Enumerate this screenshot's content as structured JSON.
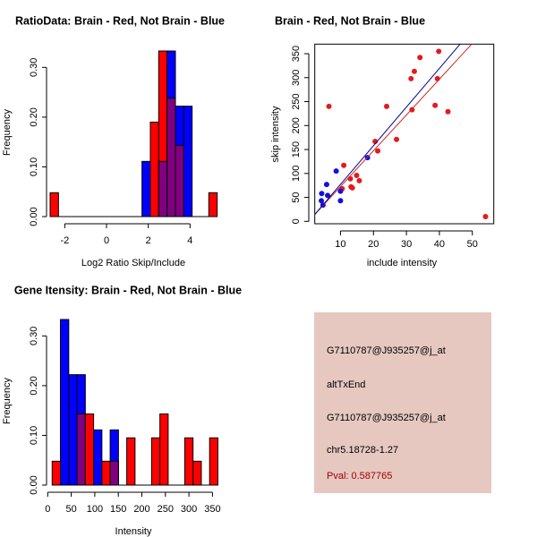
{
  "colors": {
    "red": "#ff0000",
    "blue": "#0000ff",
    "overlap": "#800080",
    "panel_bg": "#e6c8c0",
    "pval_text": "#a00000",
    "point_red": "#e31a1c",
    "point_blue": "#1010e0",
    "line_blue": "#00008b",
    "line_red": "#cd2626"
  },
  "chart_data": [
    {
      "type": "bar",
      "subtype": "overlaid-histogram",
      "title": "RatioData: Brain - Red, Not Brain - Blue",
      "xlabel": "Log2 Ratio Skip/Include",
      "ylabel": "Frequency",
      "bin_start": -2.7,
      "bin_width": 0.4,
      "xlim": [
        -2.8,
        5.5
      ],
      "ylim": [
        0,
        0.3
      ],
      "x_ticks": [
        -2,
        0,
        2,
        4
      ],
      "x_tick_labels": [
        "-2",
        "0",
        "2",
        "4"
      ],
      "y_ticks": [
        0,
        0.1,
        0.2,
        0.3
      ],
      "y_tick_labels": [
        "0.00",
        "0.10",
        "0.20",
        "0.30"
      ],
      "series": [
        {
          "name": "Not Brain",
          "color": "blue",
          "values": [
            0,
            0,
            0,
            0,
            0,
            0,
            0,
            0,
            0,
            0,
            0,
            0.111,
            0,
            0.111,
            0.333,
            0.222,
            0.222,
            0,
            0,
            0
          ]
        },
        {
          "name": "Brain",
          "color": "red",
          "values": [
            0.048,
            0,
            0,
            0,
            0,
            0,
            0,
            0,
            0,
            0,
            0,
            0,
            0.19,
            0.333,
            0.238,
            0.143,
            0,
            0,
            0,
            0.048
          ]
        }
      ]
    },
    {
      "type": "scatter",
      "title": "Brain - Red, Not Brain - Blue",
      "xlabel": "include intensity",
      "ylabel": "skip intensity",
      "xlim": [
        2.2,
        56.5
      ],
      "ylim": [
        -5,
        370
      ],
      "x_ticks": [
        10,
        20,
        30,
        40,
        50
      ],
      "x_tick_labels": [
        "10",
        "20",
        "30",
        "40",
        "50"
      ],
      "y_ticks": [
        0,
        50,
        100,
        150,
        200,
        250,
        300,
        350
      ],
      "y_tick_labels": [
        "0",
        "50",
        "100",
        "150",
        "200",
        "250",
        "300",
        "350"
      ],
      "series": [
        {
          "name": "Brain",
          "color": "red",
          "points": [
            [
              6.5,
              240
            ],
            [
              10.5,
              68
            ],
            [
              11,
              117
            ],
            [
              13,
              89
            ],
            [
              13.2,
              72
            ],
            [
              13.6,
              70
            ],
            [
              14.9,
              96
            ],
            [
              15.7,
              85
            ],
            [
              20.5,
              167
            ],
            [
              21.3,
              147
            ],
            [
              24,
              240
            ],
            [
              27,
              171
            ],
            [
              31.4,
              298
            ],
            [
              31.7,
              233
            ],
            [
              32.4,
              313
            ],
            [
              34.1,
              342
            ],
            [
              38.7,
              242
            ],
            [
              39.4,
              298
            ],
            [
              39.8,
              355
            ],
            [
              42.6,
              229
            ],
            [
              54,
              10
            ]
          ],
          "fit": {
            "slope": 7.47,
            "intercept": -2
          }
        },
        {
          "name": "Not Brain",
          "color": "blue",
          "points": [
            [
              4.2,
              43
            ],
            [
              4.3,
              58
            ],
            [
              4.7,
              34
            ],
            [
              5.8,
              77
            ],
            [
              6.1,
              54
            ],
            [
              8.7,
              105
            ],
            [
              10,
              63
            ],
            [
              10,
              43
            ],
            [
              18.2,
              133
            ]
          ],
          "fit": {
            "slope": 8.07,
            "intercept": -3.5
          }
        }
      ]
    },
    {
      "type": "bar",
      "subtype": "overlaid-histogram",
      "title": "Gene Itensity: Brain - Red, Not Brain - Blue",
      "xlabel": "Intensity",
      "ylabel": "Frequency",
      "bin_start": 9.5,
      "bin_width": 17.6,
      "xlim": [
        0,
        370
      ],
      "ylim": [
        0,
        0.3
      ],
      "x_ticks": [
        0,
        50,
        100,
        150,
        200,
        250,
        300,
        350
      ],
      "x_tick_labels": [
        "0",
        "50",
        "100",
        "150",
        "200",
        "250",
        "300",
        "350"
      ],
      "y_ticks": [
        0,
        0.1,
        0.2,
        0.3
      ],
      "y_tick_labels": [
        "0.00",
        "0.10",
        "0.20",
        "0.30"
      ],
      "series": [
        {
          "name": "Not Brain",
          "color": "blue",
          "values": [
            0,
            0.333,
            0.222,
            0.222,
            0,
            0.111,
            0,
            0.111,
            0,
            0,
            0,
            0,
            0,
            0,
            0,
            0,
            0,
            0,
            0,
            0
          ]
        },
        {
          "name": "Brain",
          "color": "red",
          "values": [
            0.048,
            0,
            0,
            0.143,
            0.143,
            0,
            0.048,
            0.048,
            0,
            0.095,
            0,
            0,
            0.095,
            0.143,
            0,
            0,
            0.095,
            0.048,
            0,
            0.095
          ]
        }
      ]
    }
  ],
  "info_panel": {
    "probe_id": "G7110787@J935257@j_at",
    "event_type": "altTxEnd",
    "probe_id_2": "G7110787@J935257@j_at",
    "location": "chr5.18728-1.27",
    "pval": "Pval: 0.587765"
  }
}
